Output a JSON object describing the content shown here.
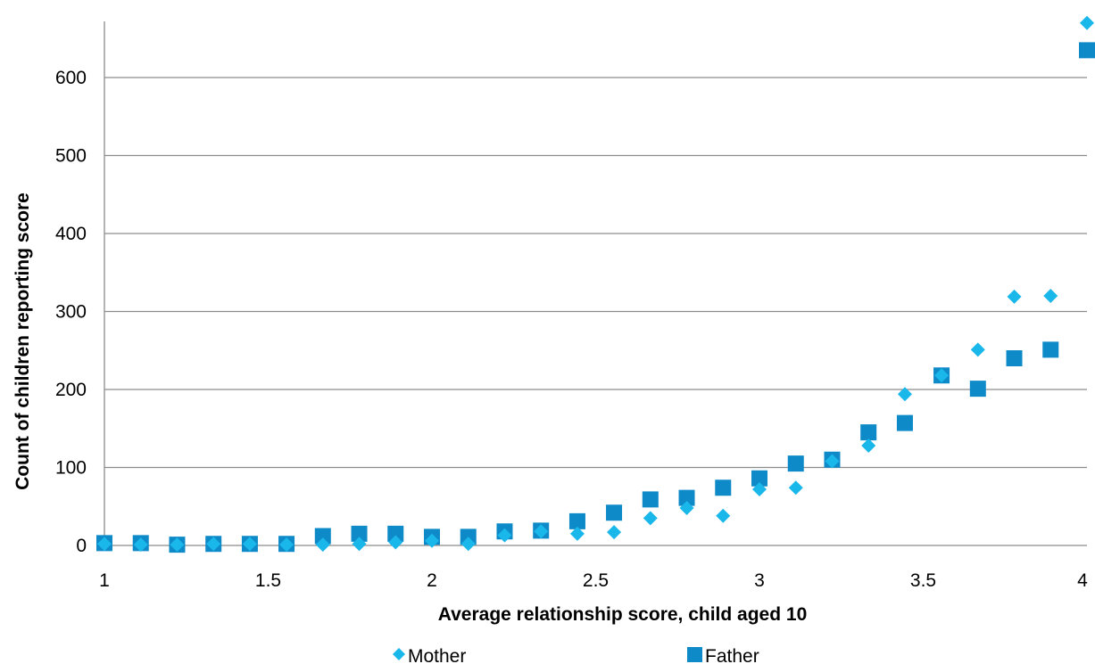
{
  "chart_data": {
    "type": "scatter",
    "title": "",
    "xlabel": "Average relationship score, child aged 10",
    "ylabel": "Count of children reporting score",
    "xlim": [
      1,
      4
    ],
    "ylim": [
      0,
      680
    ],
    "x_ticks": [
      "1",
      "1.5",
      "2",
      "2.5",
      "3",
      "3.5",
      "4"
    ],
    "x_tick_values": [
      1,
      1.5,
      2,
      2.5,
      3,
      3.5,
      4
    ],
    "y_ticks": [
      "0",
      "100",
      "200",
      "300",
      "400",
      "500",
      "600"
    ],
    "y_tick_values": [
      0,
      100,
      200,
      300,
      400,
      500,
      600
    ],
    "grid": "horizontal",
    "legend_position": "bottom",
    "x": [
      1,
      1.111,
      1.222,
      1.333,
      1.444,
      1.556,
      1.667,
      1.778,
      1.889,
      2,
      2.111,
      2.222,
      2.333,
      2.444,
      2.556,
      2.667,
      2.778,
      2.889,
      3,
      3.111,
      3.222,
      3.333,
      3.444,
      3.556,
      3.667,
      3.778,
      3.889,
      4
    ],
    "series": [
      {
        "name": "Mother",
        "marker": "diamond",
        "color": "#1ab7ea",
        "values": [
          2,
          1,
          1,
          2,
          2,
          1,
          1,
          2,
          4,
          6,
          2,
          13,
          18,
          15,
          17,
          35,
          48,
          38,
          72,
          74,
          108,
          128,
          194,
          218,
          251,
          319,
          320,
          670
        ]
      },
      {
        "name": "Father",
        "marker": "square",
        "color": "#0e8ac8",
        "values": [
          3,
          3,
          1,
          2,
          2,
          2,
          12,
          15,
          15,
          11,
          11,
          18,
          19,
          31,
          42,
          59,
          61,
          74,
          86,
          105,
          110,
          145,
          157,
          218,
          201,
          240,
          251,
          635
        ]
      }
    ]
  }
}
